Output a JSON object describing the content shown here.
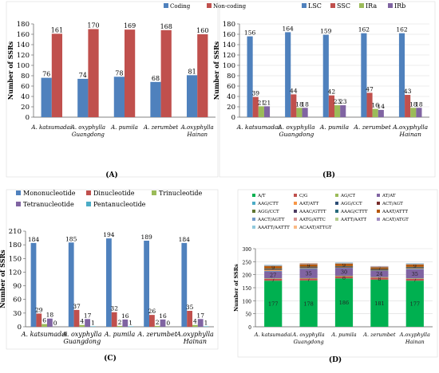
{
  "panels": [
    {
      "panel_label": "(A)",
      "chart_data": {
        "type": "bar",
        "categories": [
          "A. katsumadai",
          "A. oxyphylla Guangdong",
          "A. pumila",
          "A. zerumbet",
          "A. oxyphylla Hainan"
        ],
        "category_lines": [
          [
            "A. katsumadai"
          ],
          [
            "A. oxyphylla",
            "Guangdong"
          ],
          [
            "A. pumila"
          ],
          [
            "A. zerumbet"
          ],
          [
            "A.oxyphylla",
            "Hainan"
          ]
        ],
        "series": [
          {
            "name": "Coding",
            "values": [
              76,
              74,
              78,
              68,
              81
            ],
            "color": "#4f81bd"
          },
          {
            "name": "Non-coding",
            "values": [
              161,
              170,
              169,
              168,
              160
            ],
            "color": "#c0504d"
          }
        ],
        "ylabel": "Number of SSRs",
        "ylim": [
          0,
          180
        ],
        "yticks": [
          0,
          20,
          40,
          60,
          80,
          100,
          120,
          140,
          160,
          180
        ],
        "legend": "top-right",
        "grid": false
      }
    },
    {
      "panel_label": "(B)",
      "chart_data": {
        "type": "bar",
        "categories": [
          "A. katsumadai",
          "A. oxyphylla Guangdong",
          "A. pumila",
          "A. zerumbet",
          "A.oxyphylla Hainan"
        ],
        "category_lines": [
          [
            "A. katsumadai"
          ],
          [
            "A. oxyphylla",
            "Guangdong"
          ],
          [
            "A. pumila"
          ],
          [
            "A. zerumbet"
          ],
          [
            "A.oxyphylla",
            "Hainan"
          ]
        ],
        "series": [
          {
            "name": "LSC",
            "values": [
              156,
              164,
              159,
              162,
              162
            ],
            "color": "#4f81bd"
          },
          {
            "name": "SSC",
            "values": [
              39,
              44,
              42,
              47,
              43
            ],
            "color": "#c0504d"
          },
          {
            "name": "IRa",
            "values": [
              21,
              18,
              23,
              16,
              18
            ],
            "color": "#9bbb59"
          },
          {
            "name": "IRb",
            "values": [
              21,
              18,
              23,
              14,
              18
            ],
            "color": "#8064a2"
          }
        ],
        "ylabel": "Number of SSRs",
        "ylim": [
          0,
          180
        ],
        "yticks": [
          0,
          20,
          40,
          60,
          80,
          100,
          120,
          140,
          160,
          180
        ],
        "legend": "top",
        "grid": true
      }
    },
    {
      "panel_label": "(C)",
      "chart_data": {
        "type": "bar",
        "categories": [
          "A. katsumadai",
          "A. oxyphylla Guangdong",
          "A. pumila",
          "A. zerumbet",
          "A.oxyphylla Hainan"
        ],
        "category_lines": [
          [
            "A. katsumadai"
          ],
          [
            "A. oxyphylla",
            "Guangdong"
          ],
          [
            "A. pumila"
          ],
          [
            "A. zerumbet"
          ],
          [
            "A.oxyphylla",
            "Hainan"
          ]
        ],
        "series": [
          {
            "name": "Mononucleotide",
            "values": [
              184,
              185,
              194,
              189,
              184
            ],
            "color": "#4f81bd"
          },
          {
            "name": "Dinucleotide",
            "values": [
              29,
              37,
              32,
              26,
              35
            ],
            "color": "#c0504d"
          },
          {
            "name": "Trinucleotide",
            "values": [
              6,
              4,
              2,
              2,
              4
            ],
            "color": "#9bbb59"
          },
          {
            "name": "Tetranucleotide",
            "values": [
              18,
              17,
              16,
              16,
              17
            ],
            "color": "#8064a2"
          },
          {
            "name": "Pentanucleotide",
            "values": [
              0,
              1,
              1,
              0,
              1
            ],
            "color": "#4bacc6"
          }
        ],
        "ylabel": "Number of SSRs",
        "ylim": [
          0,
          210
        ],
        "yticks": [
          0,
          30,
          60,
          90,
          120,
          150,
          180,
          210
        ],
        "legend": "top",
        "grid": false
      }
    },
    {
      "panel_label": "(D)",
      "chart_data": {
        "type": "bar",
        "stacked": true,
        "categories": [
          "A. katsumadai",
          "A. oxyphylla Guangdong",
          "A. pumila",
          "A. zerumbet",
          "A.oxyphylla Hainan"
        ],
        "category_lines": [
          [
            "A. katsumadai"
          ],
          [
            "A. oxyphylla",
            "Guangdong"
          ],
          [
            "A. pumila"
          ],
          [
            "A. zerumbet"
          ],
          [
            "A.oxyphylla",
            "Hainan"
          ]
        ],
        "series": [
          {
            "name": "A/T",
            "values": [
              177,
              178,
              186,
              181,
              177
            ],
            "color": "#00b050",
            "labels": [
              "177",
              "178",
              "186",
              "181",
              "177"
            ]
          },
          {
            "name": "C/G",
            "values": [
              7,
              7,
              8,
              8,
              7
            ],
            "color": "#c0504d",
            "labels": [
              "7",
              "7",
              "8",
              "8",
              "7"
            ]
          },
          {
            "name": "AG/CT",
            "values": [
              2,
              2,
              2,
              2,
              2
            ],
            "color": "#9bbb59"
          },
          {
            "name": "AT/AT",
            "values": [
              27,
              35,
              30,
              24,
              35
            ],
            "color": "#8064a2",
            "labels": [
              "27",
              "35",
              "30",
              "24",
              "35"
            ]
          },
          {
            "name": "AAG/CTT",
            "values": [
              2,
              2,
              1,
              1,
              2
            ],
            "color": "#4bacc6"
          },
          {
            "name": "AAT/ATT",
            "values": [
              4,
              2,
              1,
              1,
              2
            ],
            "color": "#f79646"
          },
          {
            "name": "AGG/CCT",
            "values": [
              1,
              1,
              1,
              1,
              1
            ],
            "color": "#2c4d75"
          },
          {
            "name": "ACT/AGT",
            "values": [
              1,
              1,
              1,
              1,
              1
            ],
            "color": "#772c2a"
          },
          {
            "name": "AGG/CCT",
            "values": [
              1,
              1,
              1,
              1,
              1
            ],
            "color": "#5f7530"
          },
          {
            "name": "AAAC/GTTT",
            "values": [
              1,
              1,
              1,
              1,
              1
            ],
            "color": "#4d3b62"
          },
          {
            "name": "AAAG/CTTT",
            "values": [
              1,
              1,
              1,
              1,
              1
            ],
            "color": "#276a7c"
          },
          {
            "name": "AAAT/ATTT",
            "values": [
              9,
              9,
              9,
              7,
              9
            ],
            "color": "#b65708",
            "labels": [
              "9",
              "9",
              "9",
              "7",
              "9"
            ]
          },
          {
            "name": "AACT/AGTT",
            "values": [
              1,
              1,
              1,
              1,
              1
            ],
            "color": "#729aca"
          },
          {
            "name": "AATG/ATTC",
            "values": [
              1,
              1,
              1,
              1,
              1
            ],
            "color": "#d99694"
          },
          {
            "name": "AATT/AATT",
            "values": [
              1,
              1,
              1,
              1,
              1
            ],
            "color": "#b3cb8c"
          },
          {
            "name": "ACAT/ATGT",
            "values": [
              1,
              1,
              1,
              1,
              1
            ],
            "color": "#a18cc0"
          },
          {
            "name": "AAATT/AATTT",
            "values": [
              1,
              0,
              1,
              0,
              1
            ],
            "color": "#90c9dc"
          },
          {
            "name": "ACAAT/ATTGT",
            "values": [
              0,
              1,
              0,
              0,
              0
            ],
            "color": "#fbb984"
          }
        ],
        "ylabel": "Number of SSRs",
        "ylim": [
          0,
          300
        ],
        "yticks": [
          0,
          50,
          100,
          150,
          200,
          250,
          300
        ],
        "legend": "top",
        "grid": true
      }
    }
  ]
}
